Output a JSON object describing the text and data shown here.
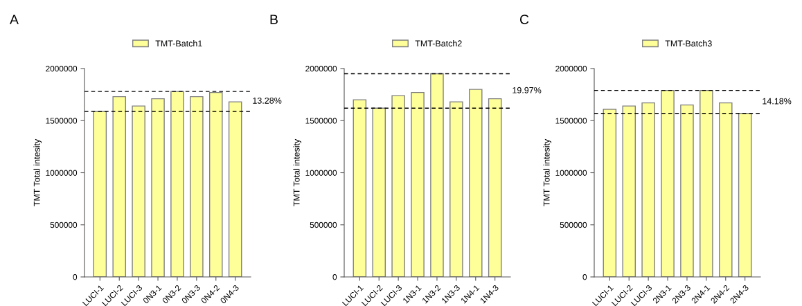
{
  "chart_data": [
    {
      "type": "bar",
      "title": "A",
      "ylabel": "TMT Total intesity",
      "categories": [
        "LUCI-1",
        "LUCI-2",
        "LUCI-3",
        "0N3-1",
        "0N3-2",
        "0N3-3",
        "0N4-2",
        "0N4-3"
      ],
      "series": [
        {
          "name": "TMT-Batch1",
          "color": "#ffff99",
          "values": [
            1590000,
            1730000,
            1640000,
            1710000,
            1780000,
            1730000,
            1770000,
            1680000
          ]
        }
      ],
      "ylim": [
        0,
        2000000
      ],
      "yticks": [
        0,
        500000,
        1000000,
        1500000,
        2000000
      ],
      "grid": false,
      "legend": "top",
      "ref_lines": [
        {
          "axis": "y",
          "value": 1780000,
          "line_style": "dashed",
          "color": "#000000"
        },
        {
          "axis": "y",
          "value": 1590000,
          "line_style": "dashed",
          "color": "#000000"
        }
      ],
      "annotations": [
        "13.28%"
      ]
    },
    {
      "type": "bar",
      "title": "B",
      "ylabel": "TMT Total intesity",
      "categories": [
        "LUCI-1",
        "LUCI-2",
        "LUCI-3",
        "1N3-1",
        "1N3-2",
        "1N3-3",
        "1N4-1",
        "1N4-3"
      ],
      "series": [
        {
          "name": "TMT-Batch2",
          "color": "#ffff99",
          "values": [
            1700000,
            1620000,
            1740000,
            1770000,
            1950000,
            1680000,
            1800000,
            1710000
          ]
        }
      ],
      "ylim": [
        0,
        2000000
      ],
      "yticks": [
        0,
        500000,
        1000000,
        1500000,
        2000000
      ],
      "grid": false,
      "legend": "top",
      "ref_lines": [
        {
          "axis": "y",
          "value": 1950000,
          "line_style": "dashed",
          "color": "#000000"
        },
        {
          "axis": "y",
          "value": 1620000,
          "line_style": "dashed",
          "color": "#000000"
        }
      ],
      "annotations": [
        "19.97%"
      ]
    },
    {
      "type": "bar",
      "title": "C",
      "ylabel": "TMT Total intesity",
      "categories": [
        "LUCI-1",
        "LUCI-2",
        "LUCI-3",
        "2N3-1",
        "2N3-3",
        "2N4-1",
        "2N4-2",
        "2N4-3"
      ],
      "series": [
        {
          "name": "TMT-Batch3",
          "color": "#ffff99",
          "values": [
            1610000,
            1640000,
            1670000,
            1790000,
            1650000,
            1790000,
            1670000,
            1570000
          ]
        }
      ],
      "ylim": [
        0,
        2000000
      ],
      "yticks": [
        0,
        500000,
        1000000,
        1500000,
        2000000
      ],
      "grid": false,
      "legend": "top",
      "ref_lines": [
        {
          "axis": "y",
          "value": 1790000,
          "line_style": "dashed",
          "color": "#000000"
        },
        {
          "axis": "y",
          "value": 1570000,
          "line_style": "dashed",
          "color": "#000000"
        }
      ],
      "annotations": [
        "14.18%"
      ]
    }
  ]
}
